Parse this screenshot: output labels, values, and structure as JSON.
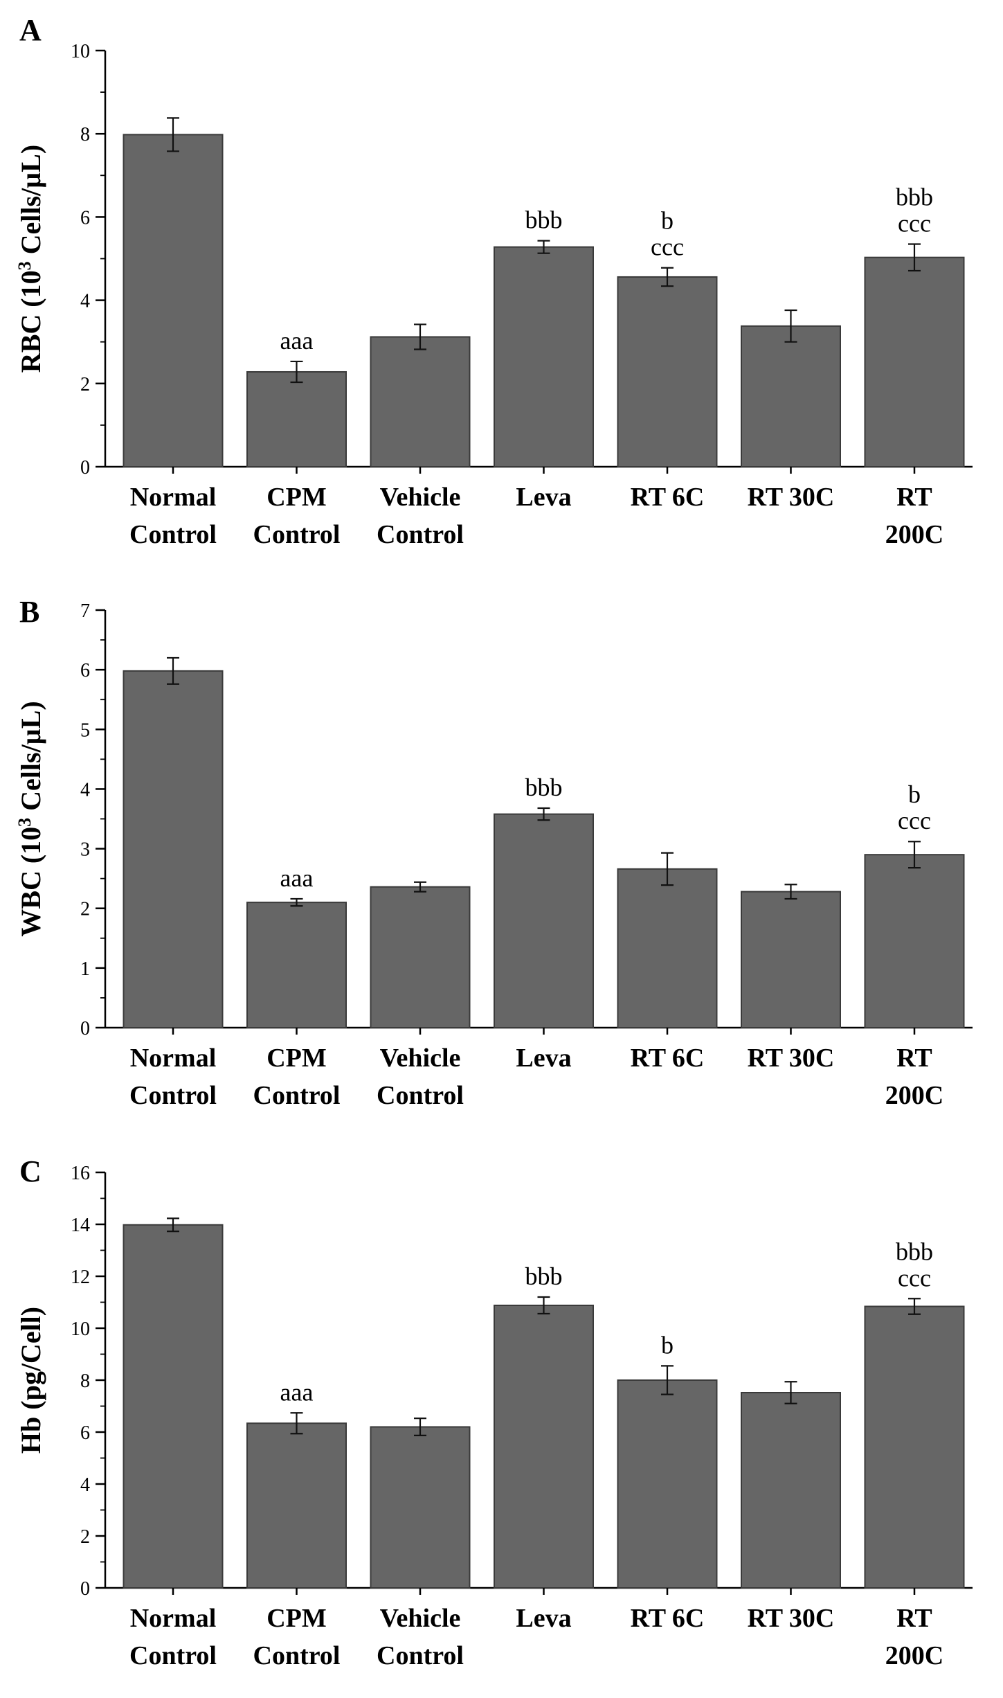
{
  "chart_data": [
    {
      "type": "bar",
      "panel": "A",
      "ylabel_prefix": "RBC (10",
      "ylabel_sup": "3",
      "ylabel_suffix": " Cells/µL)",
      "categories": [
        [
          "Normal",
          "Control"
        ],
        [
          "CPM",
          "Control"
        ],
        [
          "Vehicle",
          "Control"
        ],
        [
          "Leva"
        ],
        [
          "RT 6C"
        ],
        [
          "RT 30C"
        ],
        [
          "RT",
          "200C"
        ]
      ],
      "values": [
        7.98,
        2.28,
        3.12,
        5.28,
        4.56,
        3.38,
        5.03
      ],
      "errors": [
        0.4,
        0.25,
        0.3,
        0.15,
        0.22,
        0.38,
        0.32
      ],
      "significance": [
        [],
        [
          "aaa"
        ],
        [],
        [
          "bbb"
        ],
        [
          "b",
          "ccc"
        ],
        [],
        [
          "bbb",
          "ccc"
        ]
      ],
      "ylim": [
        0,
        10
      ],
      "yticks": [
        "0",
        "2",
        "4",
        "6",
        "8",
        "10"
      ],
      "ytick_values": [
        0,
        2,
        4,
        6,
        8,
        10
      ],
      "minor_step": 1
    },
    {
      "type": "bar",
      "panel": "B",
      "ylabel_prefix": "WBC (10",
      "ylabel_sup": "3",
      "ylabel_suffix": " Cells/µL)",
      "categories": [
        [
          "Normal",
          "Control"
        ],
        [
          "CPM",
          "Control"
        ],
        [
          "Vehicle",
          "Control"
        ],
        [
          "Leva"
        ],
        [
          "RT 6C"
        ],
        [
          "RT 30C"
        ],
        [
          "RT",
          "200C"
        ]
      ],
      "values": [
        5.98,
        2.1,
        2.36,
        3.58,
        2.66,
        2.28,
        2.9
      ],
      "errors": [
        0.22,
        0.06,
        0.08,
        0.1,
        0.27,
        0.12,
        0.22
      ],
      "significance": [
        [],
        [
          "aaa"
        ],
        [],
        [
          "bbb"
        ],
        [],
        [],
        [
          "b",
          "ccc"
        ]
      ],
      "ylim": [
        0,
        7
      ],
      "yticks": [
        "0",
        "1",
        "2",
        "3",
        "4",
        "5",
        "6",
        "7"
      ],
      "ytick_values": [
        0,
        1,
        2,
        3,
        4,
        5,
        6,
        7
      ],
      "minor_step": 0.5
    },
    {
      "type": "bar",
      "panel": "C",
      "ylabel_prefix": "Hb (pg/Cell)",
      "ylabel_sup": "",
      "ylabel_suffix": "",
      "categories": [
        [
          "Normal",
          "Control"
        ],
        [
          "CPM",
          "Control"
        ],
        [
          "Vehicle",
          "Control"
        ],
        [
          "Leva"
        ],
        [
          "RT 6C"
        ],
        [
          "RT 30C"
        ],
        [
          "RT",
          "200C"
        ]
      ],
      "values": [
        13.98,
        6.34,
        6.2,
        10.88,
        8.0,
        7.52,
        10.84
      ],
      "errors": [
        0.25,
        0.4,
        0.33,
        0.32,
        0.55,
        0.42,
        0.3
      ],
      "significance": [
        [],
        [
          "aaa"
        ],
        [],
        [
          "bbb"
        ],
        [
          "b"
        ],
        [],
        [
          "bbb",
          "ccc"
        ]
      ],
      "ylim": [
        0,
        16
      ],
      "yticks": [
        "0",
        "2",
        "4",
        "6",
        "8",
        "10",
        "12",
        "14",
        "16"
      ],
      "ytick_values": [
        0,
        2,
        4,
        6,
        8,
        10,
        12,
        14,
        16
      ],
      "minor_step": 1
    }
  ]
}
